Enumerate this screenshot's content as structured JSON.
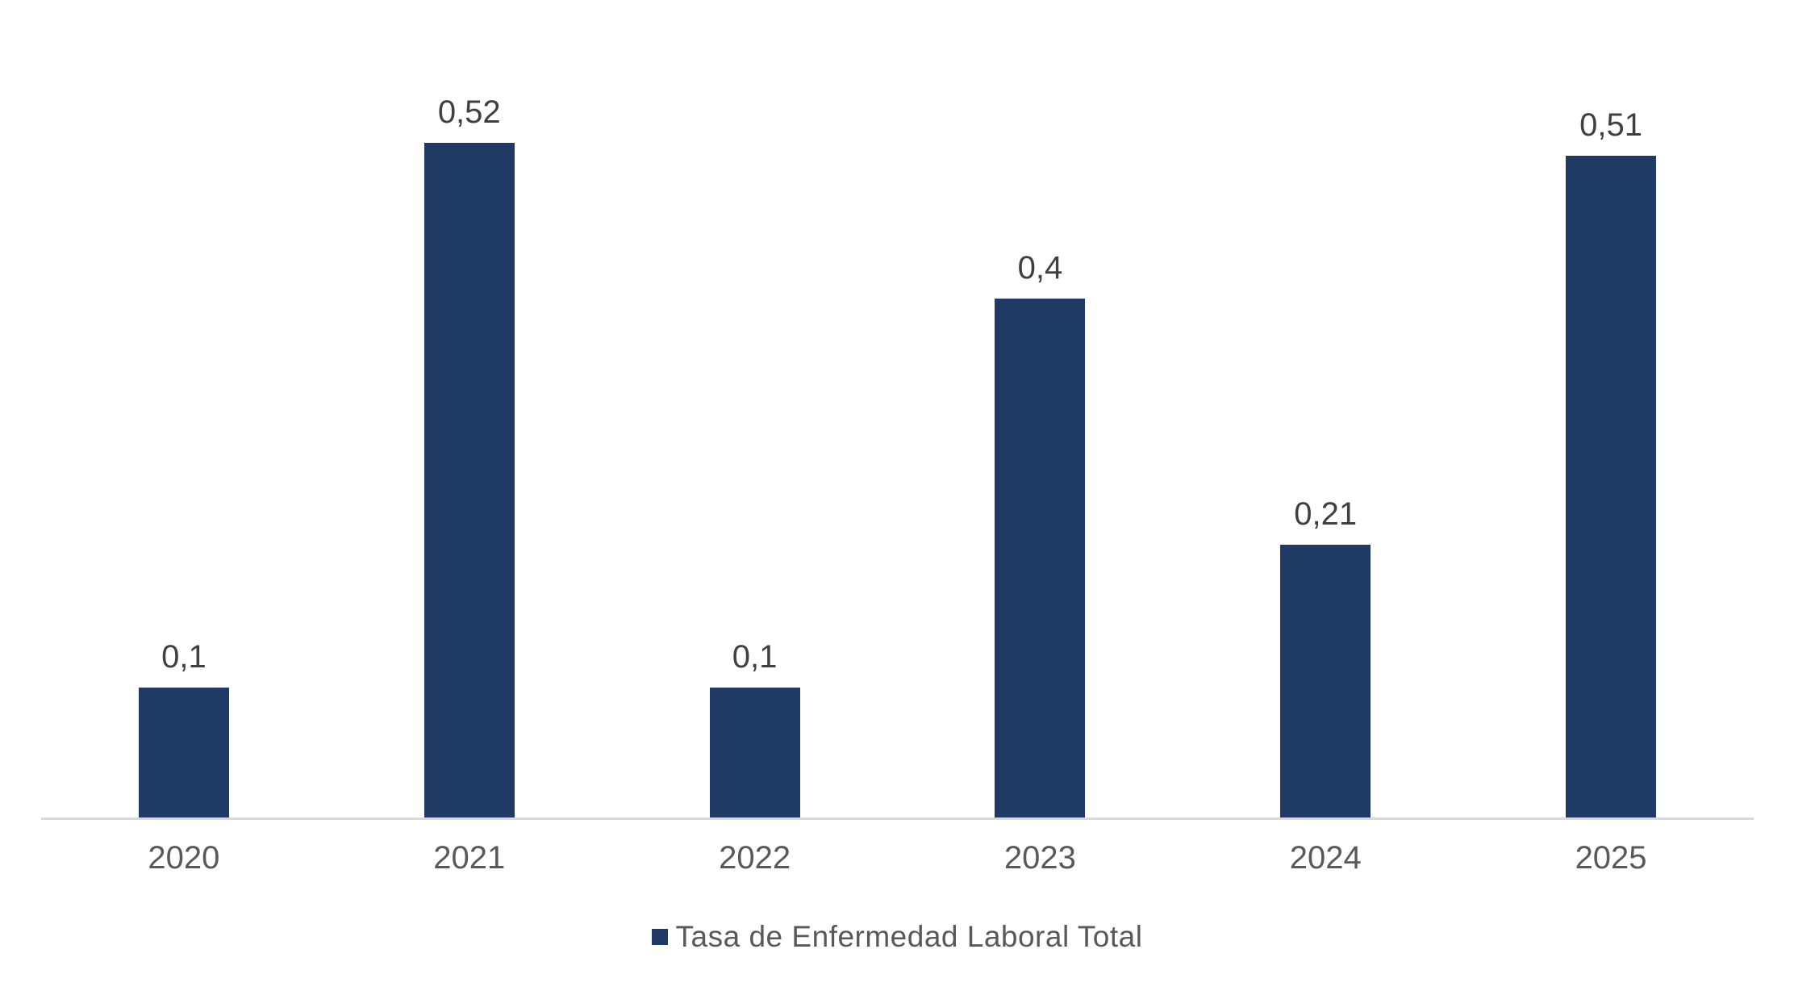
{
  "chart_data": {
    "type": "bar",
    "title": "",
    "xlabel": "",
    "ylabel": "",
    "categories": [
      "2020",
      "2021",
      "2022",
      "2023",
      "2024",
      "2025"
    ],
    "values": [
      0.1,
      0.52,
      0.1,
      0.4,
      0.21,
      0.51
    ],
    "value_labels": [
      "0,1",
      "0,52",
      "0,1",
      "0,4",
      "0,21",
      "0,51"
    ],
    "series_name": "Tasa de Enfermedad Laboral Total",
    "legend_position": "bottom",
    "grid": false,
    "ylim": [
      0,
      0.63
    ],
    "colors": {
      "bar": "#203A66",
      "value_label": "#404040",
      "axis_label": "#595959",
      "legend_text": "#595959",
      "legend_marker": "#203A66",
      "axis_line": "#D9D9D9",
      "background": "#FFFFFF"
    }
  }
}
